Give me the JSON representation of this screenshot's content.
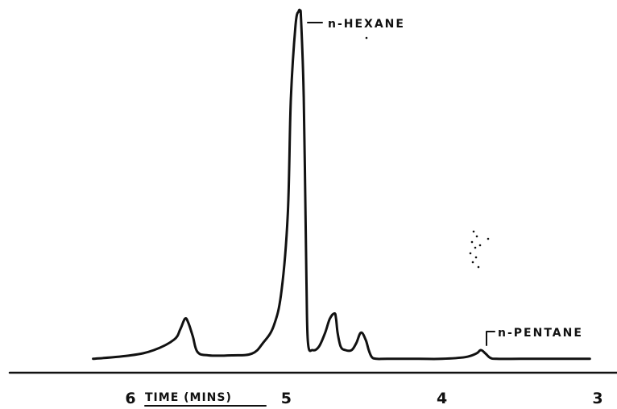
{
  "chart_data": {
    "type": "line",
    "title": "",
    "xlabel": "TIME (MINS)",
    "ylabel": "",
    "x_reversed": true,
    "xlim": [
      6.3,
      3
    ],
    "ylim": [
      0,
      100
    ],
    "x_ticks": [
      {
        "value": 6,
        "label": "6"
      },
      {
        "value": 5,
        "label": "5"
      },
      {
        "value": 4,
        "label": "4"
      },
      {
        "value": 3,
        "label": "3"
      }
    ],
    "grid": false,
    "legend": "none",
    "series": [
      {
        "x": [
          6.24,
          6.0,
          5.85,
          5.72,
          5.68,
          5.65,
          5.63,
          5.6,
          5.57,
          5.5,
          5.35,
          5.22,
          5.15,
          5.08,
          5.03,
          4.99,
          4.97,
          4.94,
          4.92,
          4.91,
          4.905,
          4.89,
          4.88,
          4.87,
          4.86,
          4.83,
          4.79,
          4.75,
          4.72,
          4.69,
          4.68,
          4.67,
          4.65,
          4.62,
          4.58,
          4.55,
          4.52,
          4.49,
          4.47,
          4.45,
          4.42,
          4.35,
          4.15,
          4.0,
          3.85,
          3.78,
          3.75,
          3.72,
          3.69,
          3.65,
          3.5,
          3.25,
          3.05
        ],
        "y": [
          0.5,
          1.5,
          3,
          6,
          9,
          12,
          11,
          7,
          2.5,
          1.5,
          1.5,
          2,
          5,
          10,
          20,
          42,
          75,
          96,
          100,
          100,
          98,
          80,
          55,
          22,
          5,
          3,
          4,
          8,
          12,
          13.5,
          12,
          8,
          4,
          3,
          3,
          5,
          8,
          6,
          3,
          1,
          0.5,
          0.5,
          0.5,
          0.5,
          1,
          2,
          3,
          2,
          0.8,
          0.5,
          0.5,
          0.5,
          0.5
        ]
      }
    ],
    "annotations": [
      {
        "text": "n-HEXANE",
        "x": 4.905,
        "y": 100
      },
      {
        "text": "n-PENTANE",
        "x": 3.75,
        "y": 3
      }
    ]
  }
}
